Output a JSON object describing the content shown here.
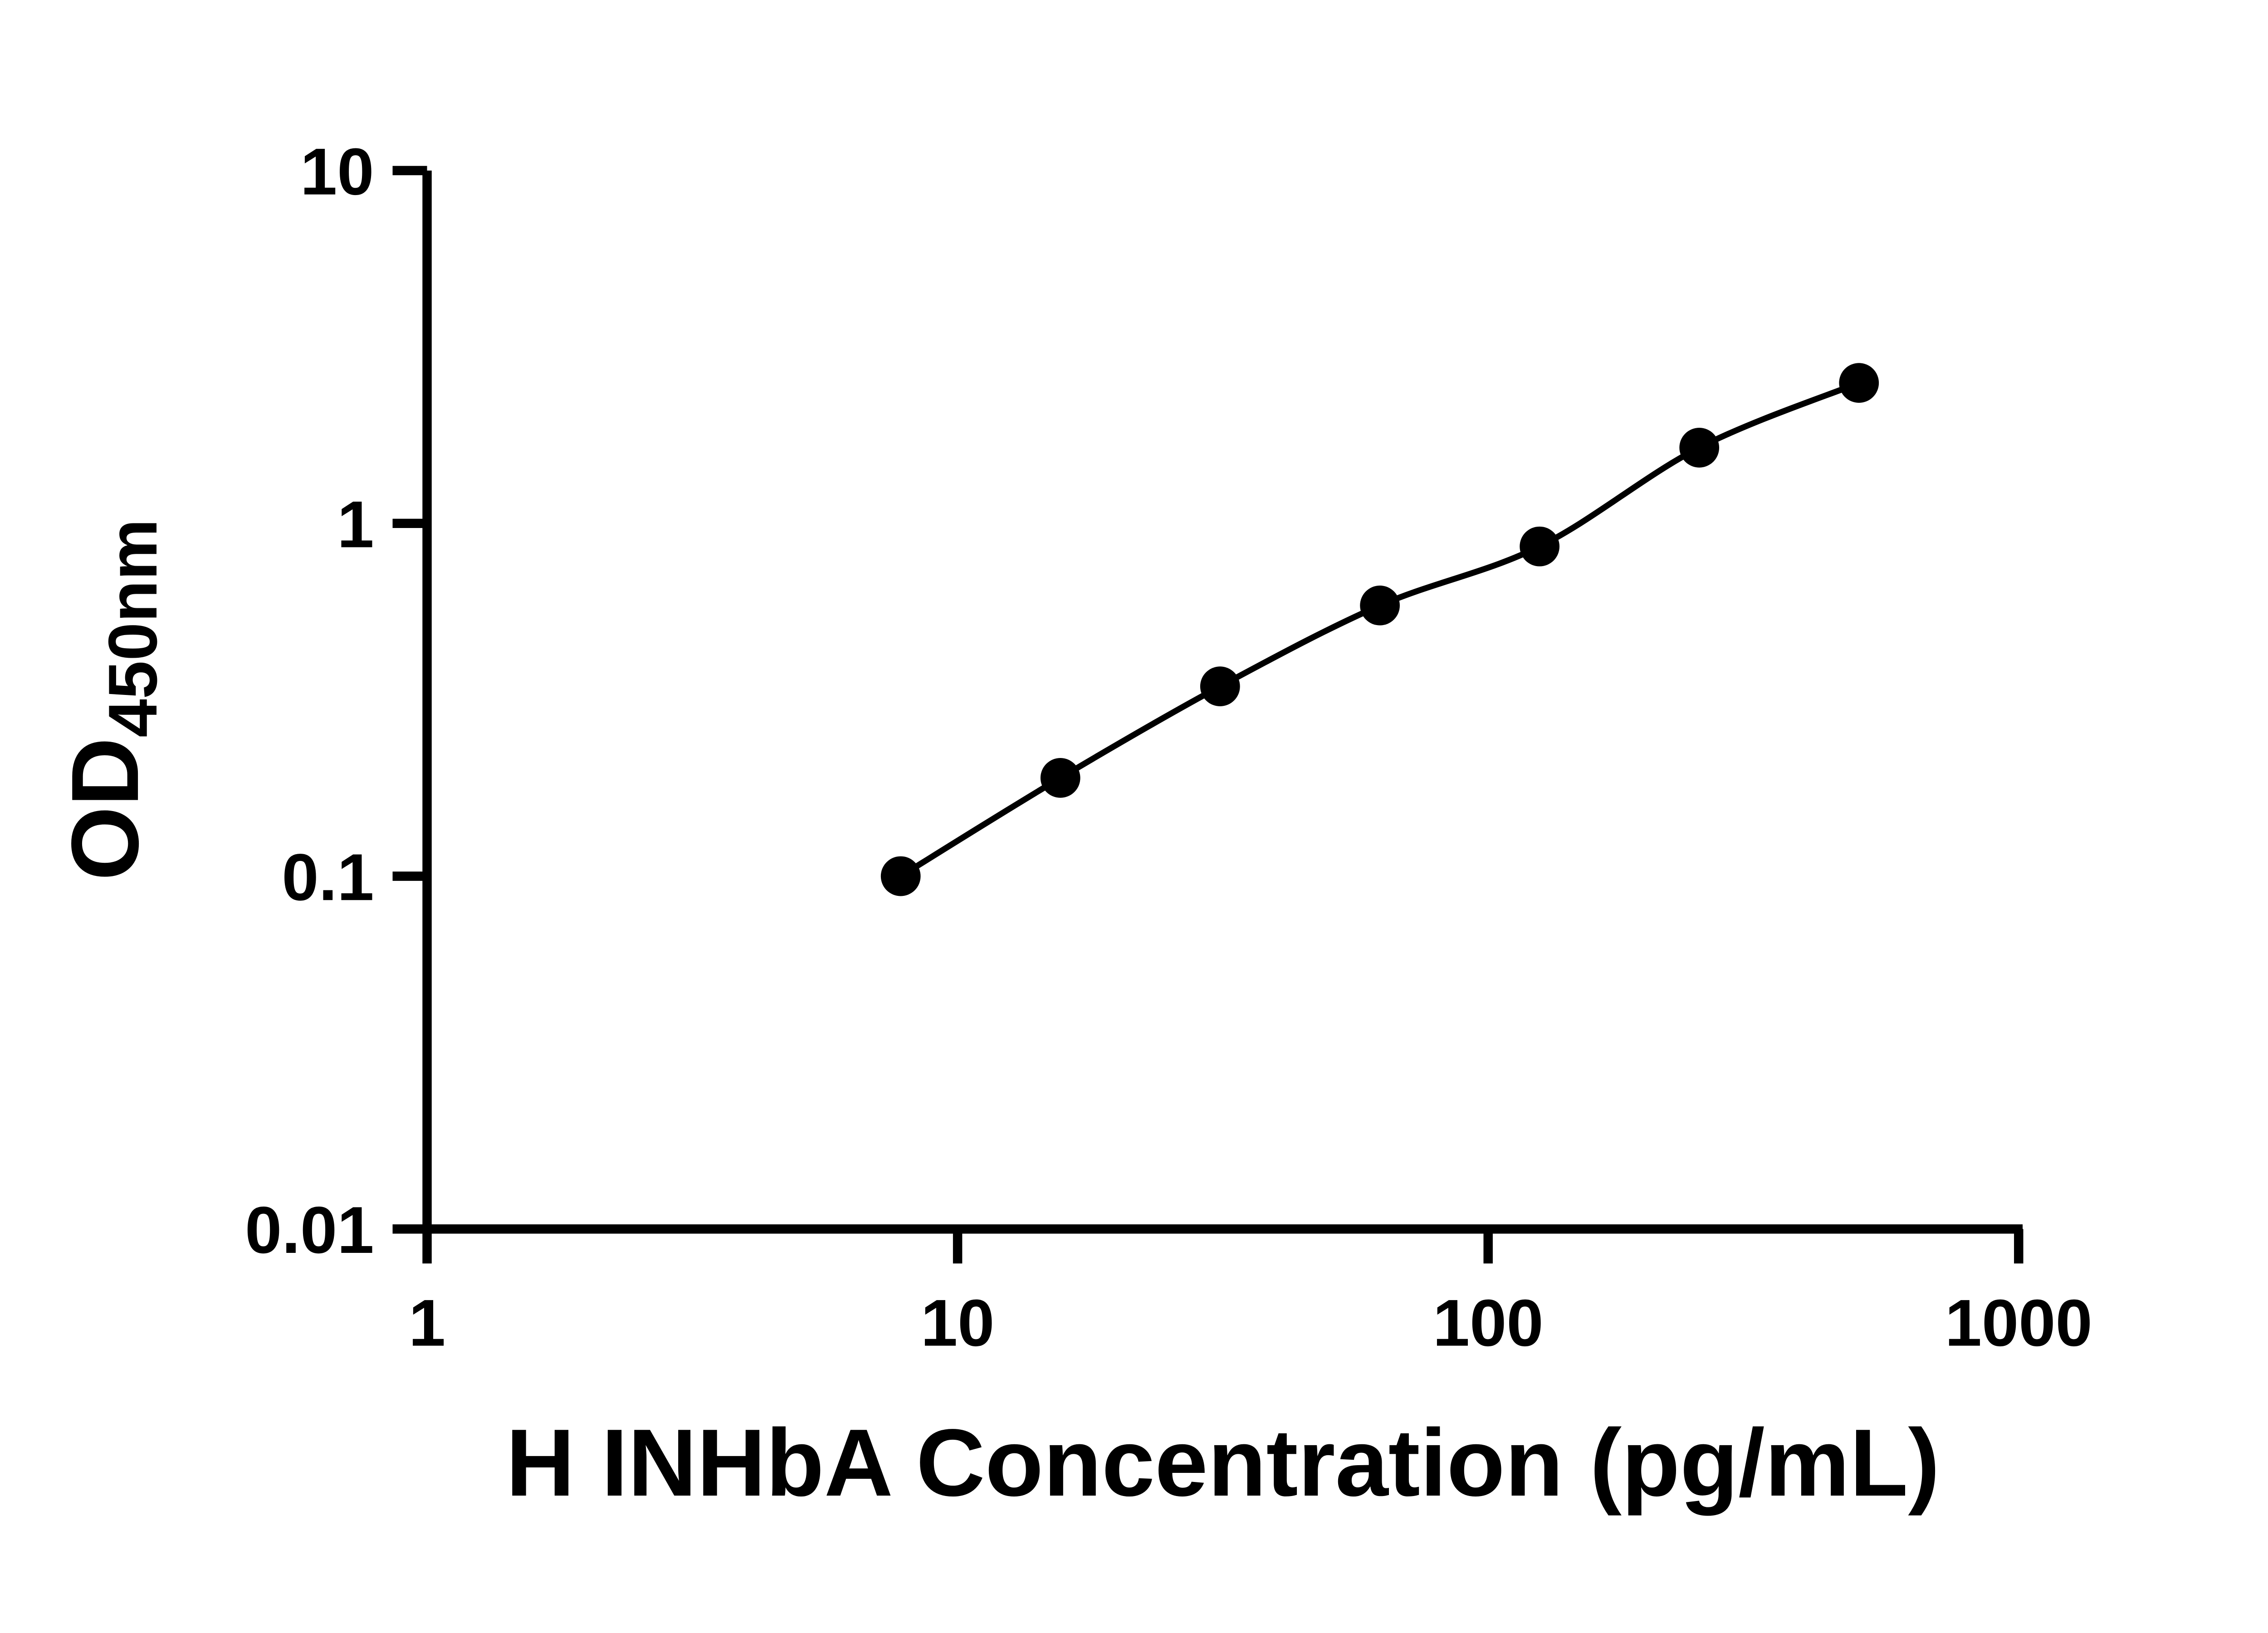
{
  "figure": {
    "background": "#ffffff",
    "foreground": "#000000"
  },
  "chart_data": {
    "type": "scatter",
    "line": true,
    "xlabel": "H INHbA Concentration (pg/mL)",
    "ylabel_main": "OD",
    "ylabel_sub": "450nm",
    "x_scale": "log10",
    "y_scale": "log10",
    "xlim": [
      1,
      1000
    ],
    "ylim": [
      0.01,
      10
    ],
    "x_ticks": [
      1,
      10,
      100,
      1000
    ],
    "x_tick_labels": [
      "1",
      "10",
      "100",
      "1000"
    ],
    "y_ticks": [
      0.01,
      0.1,
      1,
      10
    ],
    "y_tick_labels": [
      "0.01",
      "0.1",
      "1",
      "10"
    ],
    "x": [
      7.8125,
      15.625,
      31.25,
      62.5,
      125,
      250,
      500
    ],
    "y": [
      0.1,
      0.19,
      0.345,
      0.585,
      0.86,
      1.64,
      2.5
    ],
    "marker": "filled-circle",
    "marker_color": "#000000",
    "line_color": "#000000",
    "grid": false,
    "legend": false
  }
}
